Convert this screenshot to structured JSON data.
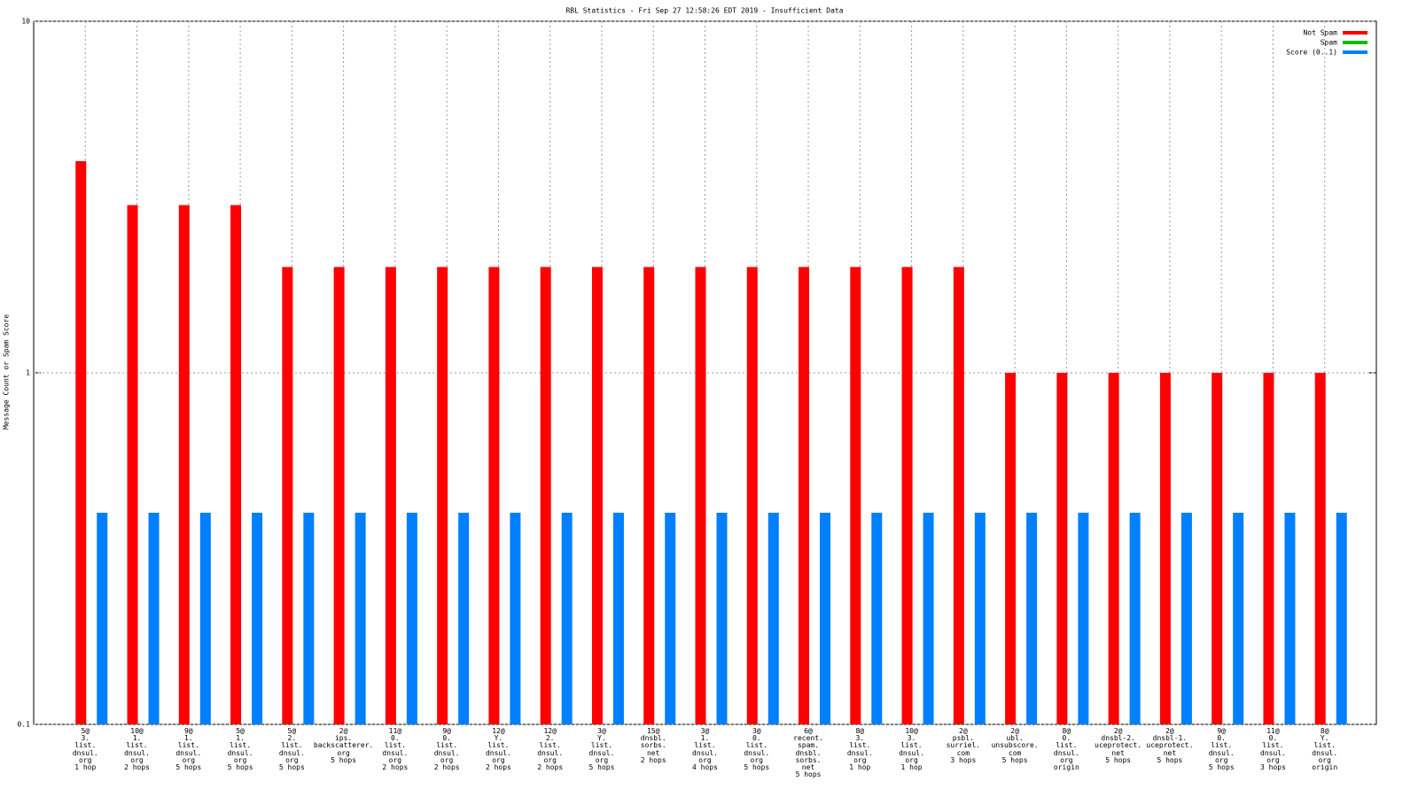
{
  "chart_data": {
    "type": "bar",
    "title": "RBL Statistics - Fri Sep 27 12:58:26 EDT 2019 - Insufficient Data",
    "y_label": "Message Count or Spam Score",
    "log_scale": true,
    "ylim": [
      0.1,
      10
    ],
    "yticks": [
      0.1,
      1,
      10
    ],
    "grid": true,
    "legend": "top-right",
    "categories": [
      "5@\n3.\nlist.\ndnsul.\norg\n1 hop",
      "10@\n1.\nlist.\ndnsul.\norg\n2 hops",
      "9@\n1.\nlist.\ndnsul.\norg\n5 hops",
      "5@\n1.\nlist.\ndnsul.\norg\n5 hops",
      "5@\n2.\nlist.\ndnsul.\norg\n5 hops",
      "2@\nips.\nbackscatterer.\norg\n5 hops",
      "11@\n0.\nlist.\ndnsul.\norg\n2 hops",
      "9@\n0.\nlist.\ndnsul.\norg\n2 hops",
      "12@\nY.\nlist.\ndnsul.\norg\n2 hops",
      "12@\n2.\nlist.\ndnsul.\norg\n2 hops",
      "3@\nY.\nlist.\ndnsul.\norg\n5 hops",
      "15@\ndnsbl.\nsorbs.\nnet\n2 hops",
      "3@\n1.\nlist.\ndnsul.\norg\n4 hops",
      "3@\n0.\nlist.\ndnsul.\norg\n5 hops",
      "6@\nrecent.\nspam.\ndnsbl.\nsorbs.\nnet\n5 hops",
      "8@\n3.\nlist.\ndnsul.\norg\n1 hop",
      "10@\n3.\nlist.\ndnsul.\norg\n1 hop",
      "2@\npsbl.\nsurriel.\ncom\n3 hops",
      "2@\nubl.\nunsubscore.\ncom\n5 hops",
      "8@\n0.\nlist.\ndnsul.\norg\norigin",
      "2@\ndnsbl-2.\nuceprotect.\nnet\n5 hops",
      "2@\ndnsbl-1.\nuceprotect.\nnet\n5 hops",
      "9@\n0.\nlist.\ndnsul.\norg\n5 hops",
      "11@\n0.\nlist.\ndnsul.\norg\n3 hops",
      "8@\nY.\nlist.\ndnsul.\norg\norigin"
    ],
    "series": [
      {
        "name": "Not Spam",
        "color": "#ff0000",
        "values": [
          4,
          3,
          3,
          3,
          2,
          2,
          2,
          2,
          2,
          2,
          2,
          2,
          2,
          2,
          2,
          2,
          2,
          2,
          1,
          1,
          1,
          1,
          1,
          1,
          1
        ]
      },
      {
        "name": "Spam",
        "color": "#00c000",
        "values": [
          null,
          null,
          null,
          null,
          null,
          null,
          null,
          null,
          null,
          null,
          null,
          null,
          null,
          null,
          null,
          null,
          null,
          null,
          null,
          null,
          null,
          null,
          null,
          null,
          null
        ]
      },
      {
        "name": "Score (0..1)",
        "color": "#0080ff",
        "values": [
          0.4,
          0.4,
          0.4,
          0.4,
          0.4,
          0.4,
          0.4,
          0.4,
          0.4,
          0.4,
          0.4,
          0.4,
          0.4,
          0.4,
          0.4,
          0.4,
          0.4,
          0.4,
          0.4,
          0.4,
          0.4,
          0.4,
          0.4,
          0.4,
          0.4
        ]
      }
    ]
  }
}
